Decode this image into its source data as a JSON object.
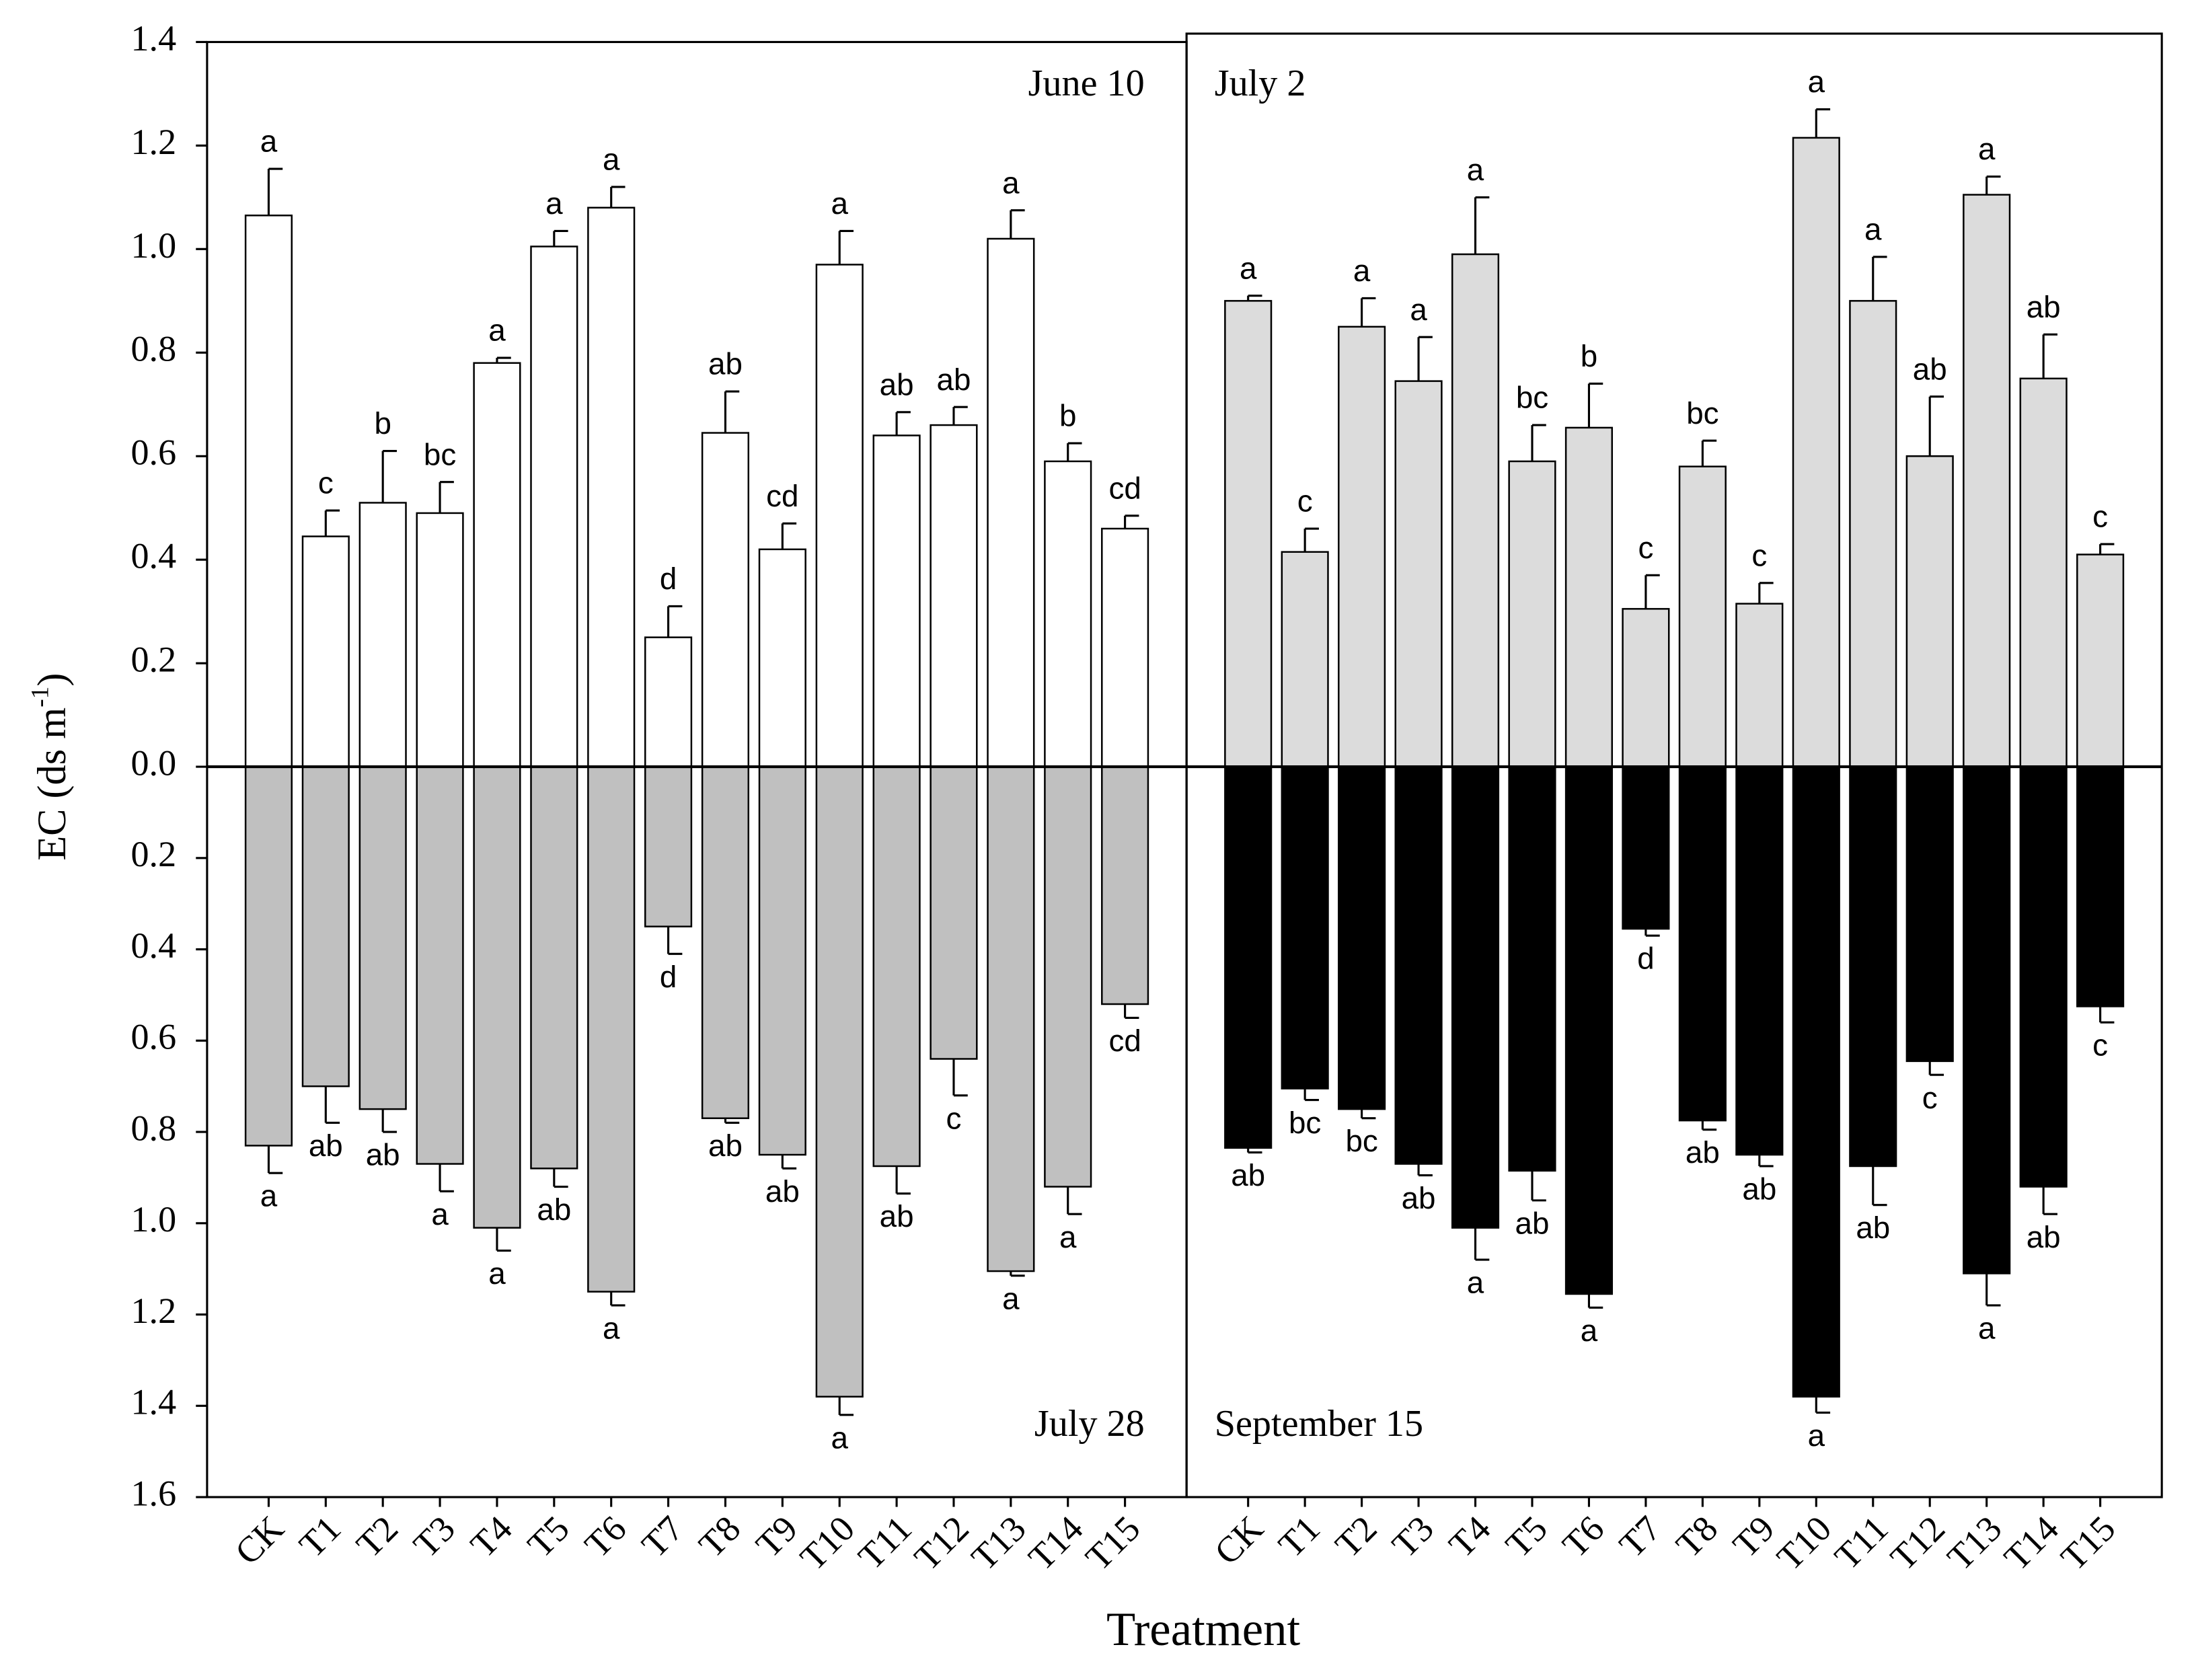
{
  "chart_data": [
    {
      "type": "bar",
      "ylabel": [
        "EC (ds m",
        "-1",
        ")"
      ],
      "xlabel": "Treatment",
      "categories": [
        "CK",
        "T1",
        "T2",
        "T3",
        "T4",
        "T5",
        "T6",
        "T7",
        "T8",
        "T9",
        "T10",
        "T11",
        "T12",
        "T13",
        "T14",
        "T15"
      ],
      "ylim": [
        0,
        1.4
      ],
      "yticks": [
        {
          "value": 0,
          "label": "0.0"
        },
        {
          "value": 0.2,
          "label": "0.2"
        },
        {
          "value": 0.4,
          "label": "0.4"
        },
        {
          "value": 0.6,
          "label": "0.6"
        },
        {
          "value": 0.8,
          "label": "0.8"
        },
        {
          "value": 1,
          "label": "1.0"
        },
        {
          "value": 1.2,
          "label": "1.2"
        },
        {
          "value": 1.4,
          "label": "1.4"
        }
      ],
      "y2lim": [
        0,
        1.6
      ],
      "y2ticks": [
        {
          "value": 0.2,
          "label": "0.2"
        },
        {
          "value": 0.4,
          "label": "0.4"
        },
        {
          "value": 0.6,
          "label": "0.6"
        },
        {
          "value": 0.8,
          "label": "0.8"
        },
        {
          "value": 1,
          "label": "1.0"
        },
        {
          "value": 1.2,
          "label": "1.2"
        },
        {
          "value": 1.4,
          "label": "1.4"
        },
        {
          "value": 1.6,
          "label": "1.6"
        }
      ],
      "y2_direction": "down",
      "series": [
        {
          "name": "June 10",
          "color": "#ffffff",
          "label_corner": "top-right",
          "values": [
            1.065,
            0.445,
            0.51,
            0.49,
            0.78,
            1.005,
            1.08,
            0.25,
            0.645,
            0.42,
            0.97,
            0.64,
            0.66,
            1.02,
            0.59,
            0.46
          ],
          "errors": [
            0.09,
            0.05,
            0.1,
            0.06,
            0.01,
            0.03,
            0.04,
            0.06,
            0.08,
            0.05,
            0.065,
            0.045,
            0.035,
            0.055,
            0.035,
            0.025
          ],
          "letters": [
            "a",
            "c",
            "b",
            "bc",
            "a",
            "a",
            "a",
            "d",
            "ab",
            "cd",
            "a",
            "ab",
            "ab",
            "a",
            "b",
            "cd"
          ]
        },
        {
          "name": "July 28",
          "color": "#c0c0c0",
          "axis": "y2",
          "label_corner": "bottom-right",
          "values": [
            0.83,
            0.7,
            0.75,
            0.87,
            1.01,
            0.88,
            1.15,
            0.35,
            0.77,
            0.85,
            1.38,
            0.875,
            0.64,
            1.105,
            0.92,
            0.52
          ],
          "errors": [
            0.06,
            0.08,
            0.05,
            0.06,
            0.05,
            0.04,
            0.03,
            0.06,
            0.01,
            0.03,
            0.04,
            0.06,
            0.08,
            0.01,
            0.06,
            0.03
          ],
          "letters": [
            "a",
            "ab",
            "ab",
            "a",
            "a",
            "ab",
            "a",
            "d",
            "ab",
            "ab",
            "a",
            "ab",
            "c",
            "a",
            "a",
            "cd"
          ]
        }
      ]
    },
    {
      "type": "bar",
      "categories": [
        "CK",
        "T1",
        "T2",
        "T3",
        "T4",
        "T5",
        "T6",
        "T7",
        "T8",
        "T9",
        "T10",
        "T11",
        "T12",
        "T13",
        "T14",
        "T15"
      ],
      "ylim": [
        0,
        1.4
      ],
      "y2lim": [
        0,
        1.6
      ],
      "y2_direction": "down",
      "series": [
        {
          "name": "July 2",
          "color": "#dcdcdc",
          "label_corner": "top-left",
          "values": [
            0.9,
            0.415,
            0.85,
            0.745,
            0.99,
            0.59,
            0.655,
            0.305,
            0.58,
            0.315,
            1.215,
            0.9,
            0.6,
            1.105,
            0.75,
            0.41
          ],
          "errors": [
            0.01,
            0.045,
            0.055,
            0.085,
            0.11,
            0.07,
            0.085,
            0.065,
            0.05,
            0.04,
            0.055,
            0.085,
            0.115,
            0.035,
            0.085,
            0.02
          ],
          "letters": [
            "a",
            "c",
            "a",
            "a",
            "a",
            "bc",
            "b",
            "c",
            "bc",
            "c",
            "a",
            "a",
            "ab",
            "a",
            "ab",
            "c"
          ]
        },
        {
          "name": "September 15",
          "color": "#000000",
          "axis": "y2",
          "label_corner": "bottom-left",
          "values": [
            0.835,
            0.705,
            0.75,
            0.87,
            1.01,
            0.885,
            1.155,
            0.355,
            0.775,
            0.85,
            1.38,
            0.875,
            0.645,
            1.11,
            0.92,
            0.525
          ],
          "errors": [
            0.01,
            0.025,
            0.02,
            0.025,
            0.07,
            0.065,
            0.03,
            0.015,
            0.02,
            0.025,
            0.035,
            0.085,
            0.03,
            0.07,
            0.06,
            0.035
          ],
          "letters": [
            "ab",
            "bc",
            "bc",
            "ab",
            "a",
            "ab",
            "a",
            "d",
            "ab",
            "ab",
            "a",
            "ab",
            "c",
            "a",
            "ab",
            "c"
          ]
        }
      ]
    }
  ]
}
